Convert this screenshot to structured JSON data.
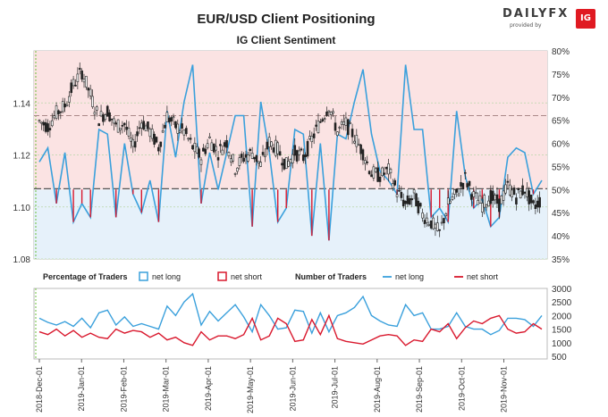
{
  "header": {
    "title": "EUR/USD Client Positioning",
    "subtitle": "IG Client Sentiment"
  },
  "brand": {
    "wordmark": "DAILYFX",
    "tagline": "provided by",
    "badge": "IG"
  },
  "colors": {
    "background_upper": "#fbe3e3",
    "background_lower": "#e6f1fa",
    "net_long": "#3aa0dc",
    "net_short": "#d9182d",
    "candle_up": "#444444",
    "candle_down": "#222222",
    "baseline": "#555555"
  },
  "chart_data": [
    {
      "type": "candlestick",
      "title": "IG Client Sentiment",
      "x_ticks": [
        "2018-Dec-01",
        "2019-Jan-01",
        "2019-Feb-01",
        "2019-Mar-01",
        "2019-Apr-01",
        "2019-May-01",
        "2019-Jun-01",
        "2019-Jul-01",
        "2019-Aug-01",
        "2019-Sep-01",
        "2019-Oct-01",
        "2019-Nov-01"
      ],
      "left_axis": {
        "ticks": [
          "1.08",
          "1.10",
          "1.12",
          "1.14"
        ],
        "ylim": [
          1.08,
          1.16
        ]
      },
      "right_axis": {
        "ticks": [
          "35%",
          "40%",
          "45%",
          "50%",
          "55%",
          "60%",
          "65%",
          "70%",
          "75%",
          "80%"
        ],
        "ylim": [
          35,
          80
        ]
      },
      "reference_lines": {
        "price": 1.107,
        "percent_high": 66,
        "percent_low": 50
      },
      "price_weekly_close": [
        1.133,
        1.131,
        1.136,
        1.139,
        1.147,
        1.152,
        1.143,
        1.134,
        1.137,
        1.131,
        1.132,
        1.123,
        1.133,
        1.129,
        1.123,
        1.135,
        1.131,
        1.129,
        1.123,
        1.119,
        1.126,
        1.121,
        1.125,
        1.115,
        1.119,
        1.121,
        1.116,
        1.125,
        1.122,
        1.116,
        1.121,
        1.119,
        1.126,
        1.133,
        1.139,
        1.129,
        1.132,
        1.127,
        1.121,
        1.113,
        1.112,
        1.114,
        1.106,
        1.101,
        1.104,
        1.097,
        1.094,
        1.09,
        1.101,
        1.105,
        1.111,
        1.104,
        1.101,
        1.104,
        1.101,
        1.108,
        1.104,
        1.107,
        1.1,
        1.103
      ],
      "series": [
        {
          "name": "net long %",
          "values": [
            56,
            59,
            47,
            58,
            43,
            47,
            44,
            63,
            62,
            44,
            60,
            49,
            45,
            52,
            43,
            67,
            57,
            69,
            77,
            47,
            58,
            50,
            58,
            66,
            66,
            42,
            69,
            58,
            43,
            46,
            63,
            62,
            40,
            60,
            39,
            62,
            61,
            69,
            76,
            62,
            54,
            52,
            49,
            77,
            63,
            63,
            44,
            46,
            43,
            67,
            53,
            46,
            48,
            42,
            44,
            57,
            59,
            58,
            49,
            52
          ]
        }
      ]
    },
    {
      "type": "line",
      "title": "",
      "legend": [
        {
          "group": "Percentage of Traders",
          "items": [
            "net long",
            "net short"
          ]
        },
        {
          "group": "Number of Traders",
          "items": [
            "net long",
            "net short"
          ]
        }
      ],
      "x_ticks": [
        "2018-Dec-01",
        "2019-Jan-01",
        "2019-Feb-01",
        "2019-Mar-01",
        "2019-Apr-01",
        "2019-May-01",
        "2019-Jun-01",
        "2019-Jul-01",
        "2019-Aug-01",
        "2019-Sep-01",
        "2019-Oct-01",
        "2019-Nov-01"
      ],
      "right_axis": {
        "ticks": [
          "500",
          "1000",
          "1500",
          "2000",
          "2500",
          "3000"
        ],
        "ylim": [
          400,
          3000
        ]
      },
      "series": [
        {
          "name": "net long",
          "values": [
            1900,
            1750,
            1650,
            1780,
            1600,
            1900,
            1550,
            2100,
            2200,
            1650,
            1950,
            1600,
            1700,
            1600,
            1500,
            2350,
            2000,
            2500,
            2800,
            1650,
            2150,
            1800,
            2100,
            2400,
            1950,
            1400,
            2400,
            2000,
            1500,
            1550,
            2200,
            2150,
            1350,
            2100,
            1400,
            2000,
            2100,
            2300,
            2700,
            2000,
            1800,
            1650,
            1600,
            2400,
            2000,
            2100,
            1500,
            1500,
            1600,
            2100,
            1600,
            1500,
            1500,
            1300,
            1450,
            1900,
            1900,
            1850,
            1600,
            2000
          ]
        },
        {
          "name": "net short",
          "values": [
            1400,
            1300,
            1500,
            1250,
            1450,
            1200,
            1350,
            1200,
            1150,
            1500,
            1350,
            1450,
            1400,
            1200,
            1350,
            1100,
            1200,
            1000,
            900,
            1400,
            1100,
            1250,
            1250,
            1150,
            1300,
            1900,
            1100,
            1250,
            1900,
            1700,
            1050,
            1100,
            1850,
            1300,
            2000,
            1150,
            1050,
            1000,
            950,
            1100,
            1250,
            1300,
            1250,
            900,
            1100,
            1050,
            1500,
            1400,
            1700,
            1150,
            1550,
            1800,
            1700,
            1900,
            2000,
            1500,
            1350,
            1400,
            1700,
            1500
          ]
        }
      ]
    }
  ]
}
